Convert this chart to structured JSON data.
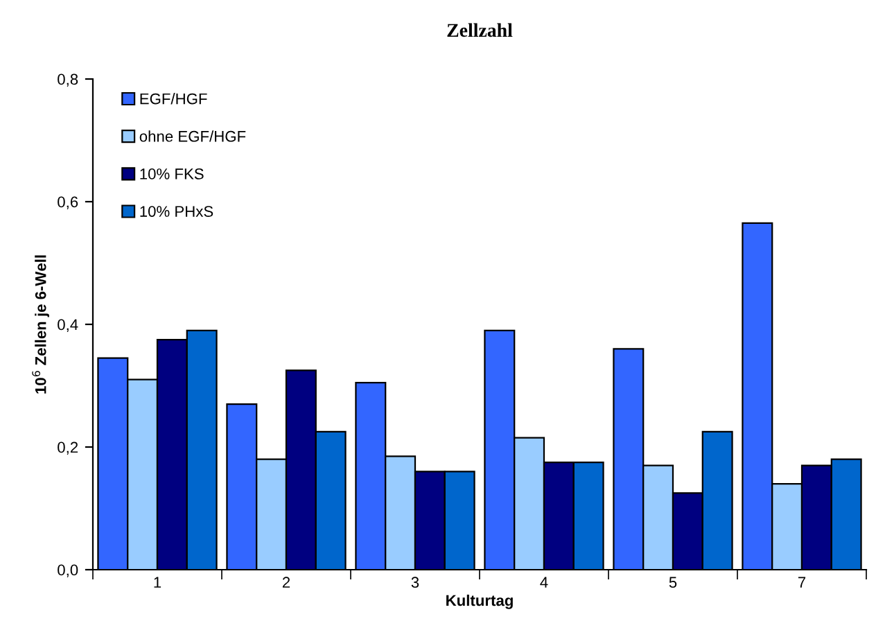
{
  "chart_data": {
    "type": "bar",
    "title": "Zellzahl",
    "xlabel": "Kulturtag",
    "ylabel": "10$^{6}$ Zellen je 6-Well",
    "categories": [
      "1",
      "2",
      "3",
      "4",
      "5",
      "7"
    ],
    "series": [
      {
        "name": "EGF/HGF",
        "color": "#3366ff",
        "values": [
          0.345,
          0.27,
          0.305,
          0.39,
          0.36,
          0.565
        ]
      },
      {
        "name": "ohne EGF/HGF",
        "color": "#99ccff",
        "values": [
          0.31,
          0.18,
          0.185,
          0.215,
          0.17,
          0.14
        ]
      },
      {
        "name": "10% FKS",
        "color": "#000080",
        "values": [
          0.375,
          0.325,
          0.16,
          0.175,
          0.125,
          0.17
        ]
      },
      {
        "name": "10% PHxS",
        "color": "#0066cc",
        "values": [
          0.39,
          0.225,
          0.16,
          0.175,
          0.225,
          0.18
        ]
      }
    ],
    "ylim": [
      0,
      0.8
    ],
    "yticks": [
      {
        "value": 0,
        "label": "0,0"
      },
      {
        "value": 0.2,
        "label": "0,2"
      },
      {
        "value": 0.4,
        "label": "0,4"
      },
      {
        "value": 0.6,
        "label": "0,6"
      },
      {
        "value": 0.8,
        "label": "0,8"
      }
    ],
    "grid": false,
    "legend": "top left"
  }
}
